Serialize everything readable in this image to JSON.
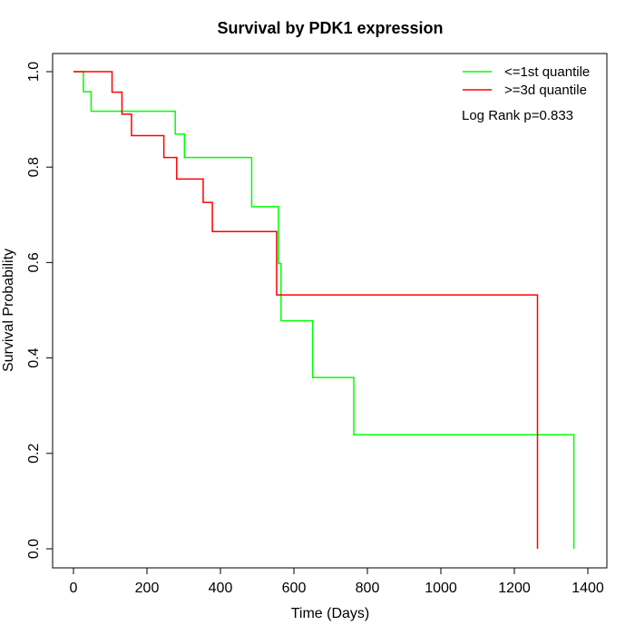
{
  "chart_data": {
    "type": "line",
    "title": "Survival by PDK1 expression",
    "xlabel": "Time (Days)",
    "ylabel": "Survival Probability",
    "xlim": [
      0,
      1400
    ],
    "ylim": [
      0,
      1
    ],
    "xticks": [
      0,
      200,
      400,
      600,
      800,
      1000,
      1200,
      1400
    ],
    "yticks": [
      0.0,
      0.2,
      0.4,
      0.6,
      0.8,
      1.0
    ],
    "xtick_labels": [
      "0",
      "200",
      "400",
      "600",
      "800",
      "1000",
      "1200",
      "1400"
    ],
    "ytick_labels": [
      "0.0",
      "0.2",
      "0.4",
      "0.6",
      "0.8",
      "1.0"
    ],
    "grid": false,
    "legend_position": "top-right",
    "annotation": "Log Rank p=0.833",
    "series": [
      {
        "name": "<=1st quantile",
        "color": "#00ff00",
        "step": "post",
        "points": [
          [
            0,
            1.0
          ],
          [
            27,
            0.958
          ],
          [
            48,
            0.917
          ],
          [
            277,
            0.869
          ],
          [
            302,
            0.82
          ],
          [
            485,
            0.717
          ],
          [
            558,
            0.598
          ],
          [
            565,
            0.478
          ],
          [
            651,
            0.359
          ],
          [
            763,
            0.239
          ],
          [
            1362,
            0.0
          ]
        ]
      },
      {
        "name": ">=3d quantile",
        "color": "#ff0000",
        "step": "post",
        "points": [
          [
            0,
            1.0
          ],
          [
            105,
            0.957
          ],
          [
            132,
            0.911
          ],
          [
            158,
            0.866
          ],
          [
            246,
            0.82
          ],
          [
            281,
            0.775
          ],
          [
            353,
            0.726
          ],
          [
            378,
            0.665
          ],
          [
            553,
            0.532
          ],
          [
            1263,
            0.0
          ]
        ]
      }
    ]
  }
}
